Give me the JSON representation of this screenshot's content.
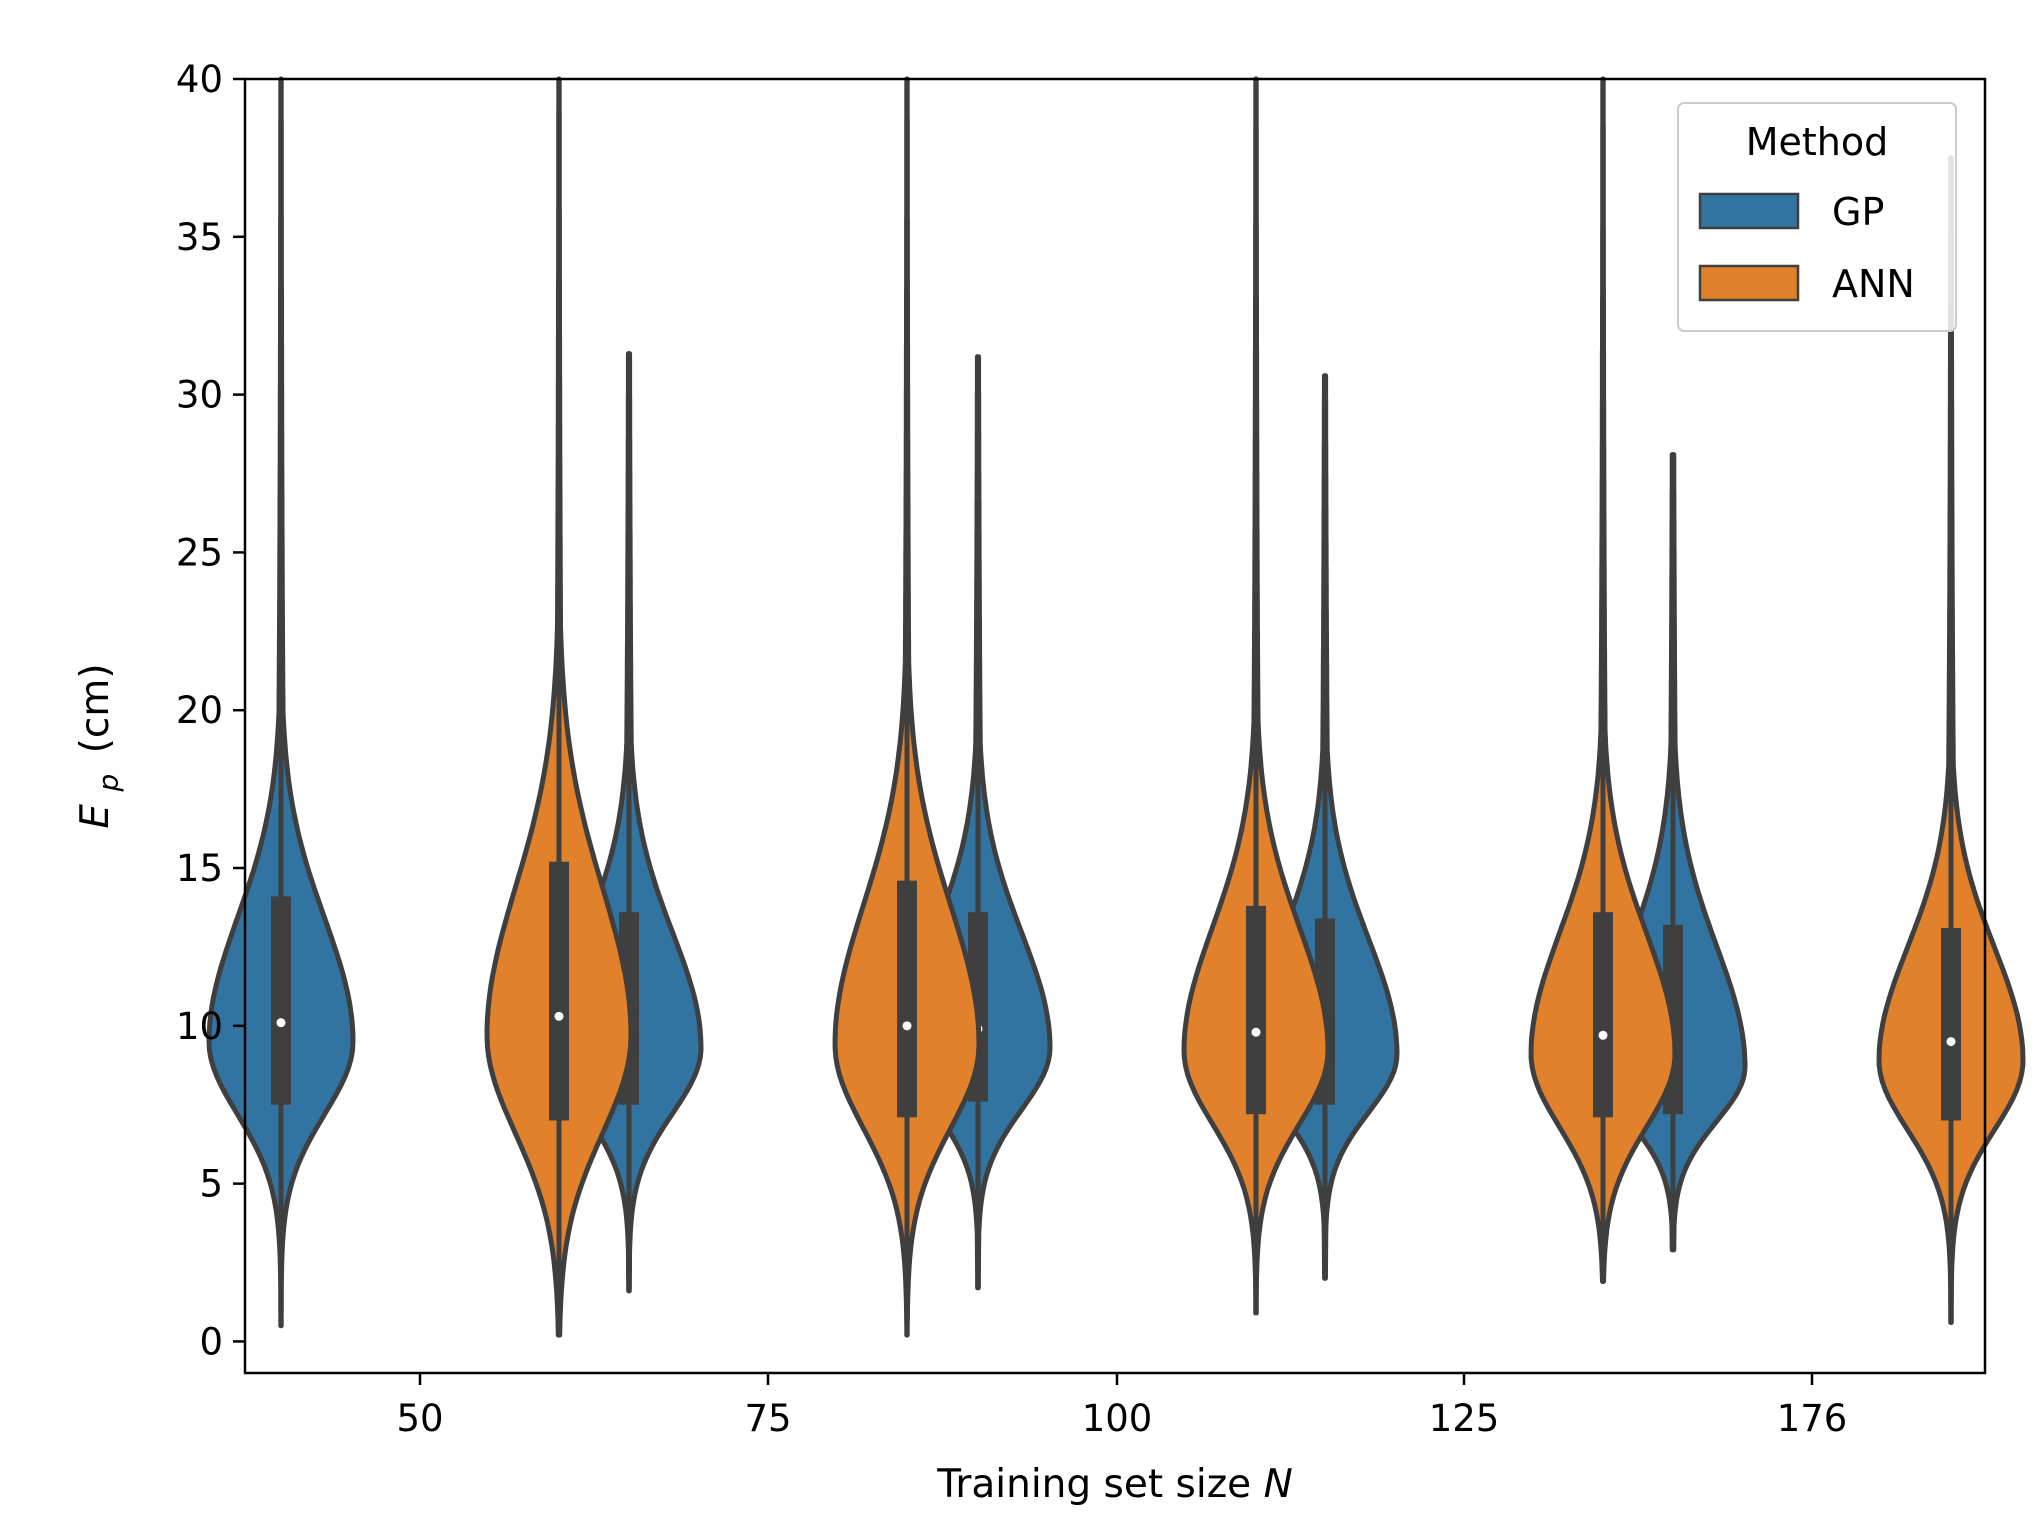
{
  "chart_data": {
    "type": "violin",
    "xlabel": "Training set size",
    "xlabel_var": "N",
    "ylabel_var": "E",
    "ylabel_sub": "p",
    "ylabel_unit": "(cm)",
    "ylim": [
      -1,
      40
    ],
    "yticks": [
      0,
      5,
      10,
      15,
      20,
      25,
      30,
      35,
      40
    ],
    "categories": [
      "50",
      "75",
      "100",
      "125",
      "176"
    ],
    "legend": {
      "title": "Method",
      "placement": "top-right",
      "entries": [
        {
          "label": "GP",
          "color": "#3274a1"
        },
        {
          "label": "ANN",
          "color": "#e1812c"
        }
      ]
    },
    "series": [
      {
        "name": "GP",
        "color": "#3274a1",
        "violins": [
          {
            "category": "50",
            "min": 0.5,
            "max": 40,
            "q1": 7.5,
            "median": 10.1,
            "q3": 14.1
          },
          {
            "category": "75",
            "min": 1.6,
            "max": 31.3,
            "q1": 7.5,
            "median": 9.9,
            "q3": 13.6
          },
          {
            "category": "100",
            "min": 1.7,
            "max": 31.2,
            "q1": 7.6,
            "median": 9.9,
            "q3": 13.6
          },
          {
            "category": "125",
            "min": 2.0,
            "max": 30.6,
            "q1": 7.5,
            "median": 9.7,
            "q3": 13.4
          },
          {
            "category": "176",
            "min": 2.9,
            "max": 28.1,
            "q1": 7.2,
            "median": 9.3,
            "q3": 13.2
          }
        ]
      },
      {
        "name": "ANN",
        "color": "#e1812c",
        "violins": [
          {
            "category": "50",
            "min": 0.2,
            "max": 40,
            "q1": 7.0,
            "median": 10.3,
            "q3": 15.2
          },
          {
            "category": "75",
            "min": 0.2,
            "max": 40,
            "q1": 7.1,
            "median": 10.0,
            "q3": 14.6
          },
          {
            "category": "100",
            "min": 0.9,
            "max": 40,
            "q1": 7.2,
            "median": 9.8,
            "q3": 13.8
          },
          {
            "category": "125",
            "min": 1.9,
            "max": 40,
            "q1": 7.1,
            "median": 9.7,
            "q3": 13.6
          },
          {
            "category": "176",
            "min": 0.6,
            "max": 37.5,
            "q1": 7.0,
            "median": 9.5,
            "q3": 13.1
          }
        ]
      }
    ]
  }
}
